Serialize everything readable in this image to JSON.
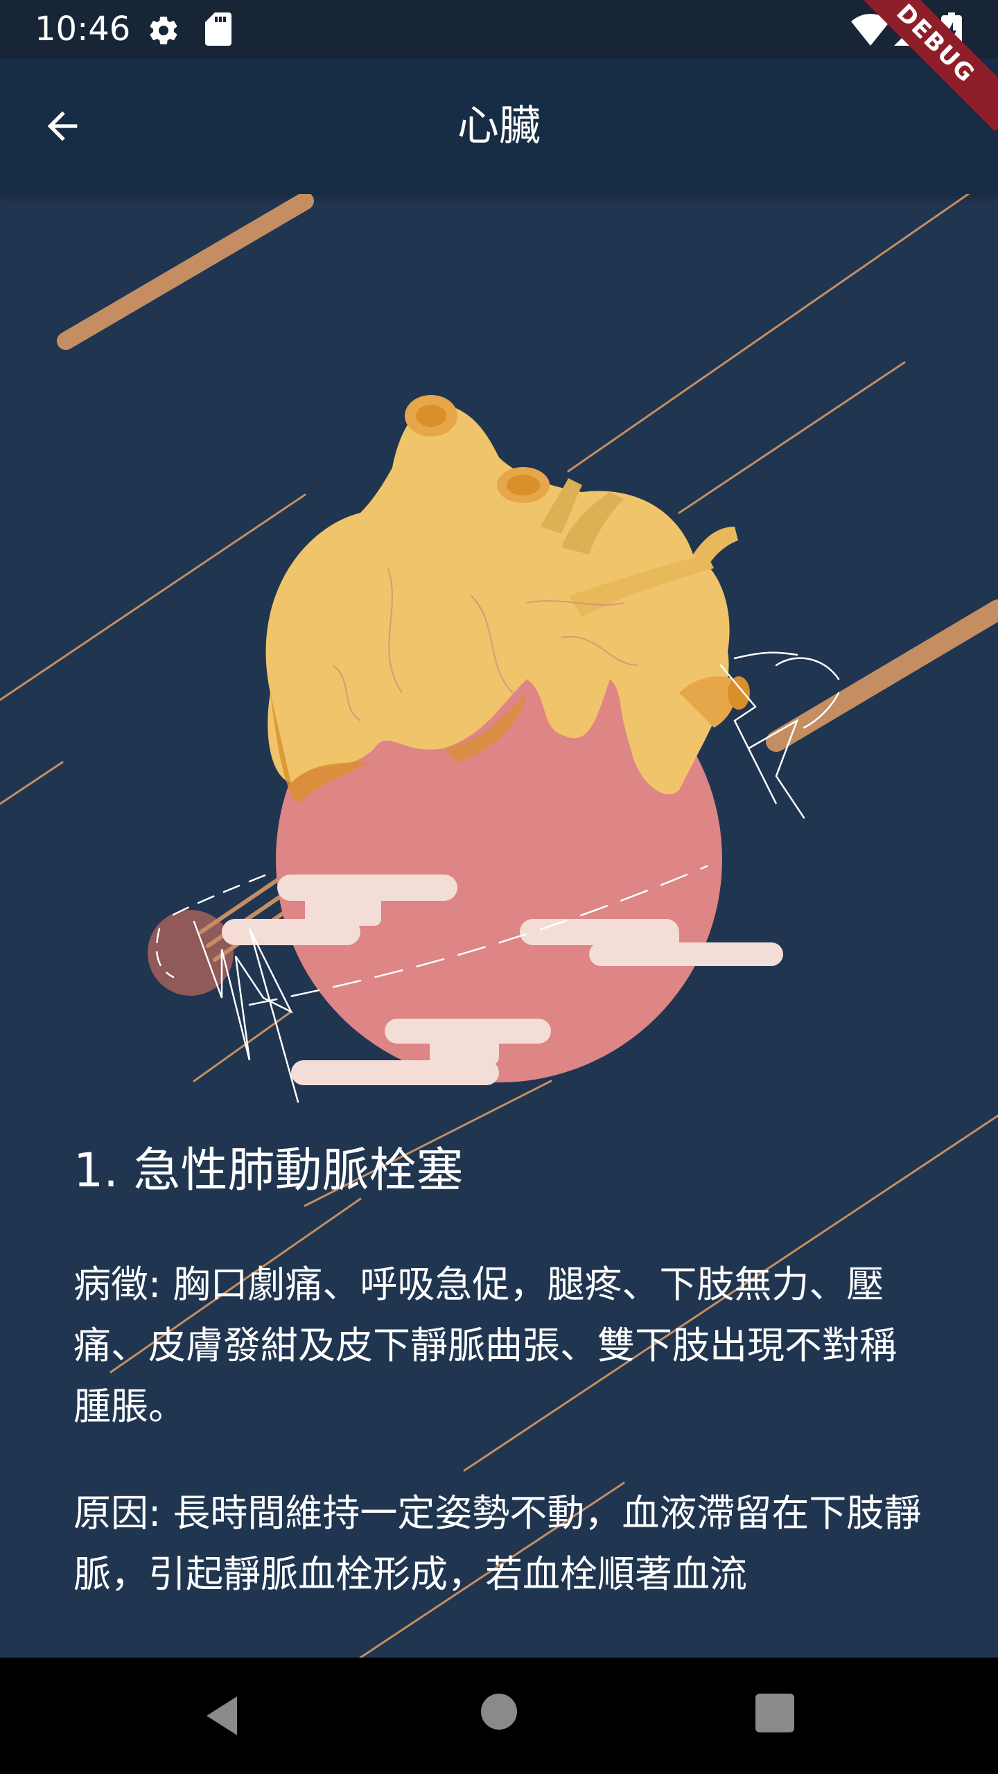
{
  "status_bar": {
    "time": "10:46",
    "icons": [
      "gear-icon",
      "sd-card-icon",
      "wifi-icon",
      "signal-icon",
      "battery-charging-icon"
    ]
  },
  "debug_banner": "DEBUG",
  "app_bar": {
    "title": "心臟",
    "back_icon": "arrow-back-icon"
  },
  "illustration": {
    "subject": "heart-illustration",
    "colors": {
      "background": "#203550",
      "heart_yellow": "#f0c46a",
      "heart_orange": "#d9902a",
      "heart_pink": "#de8585",
      "cloud": "#f3ddd6",
      "lines": "#c58e62"
    }
  },
  "article": {
    "heading": "1. 急性肺動脈栓塞",
    "symptoms": "病徵: 胸口劇痛、呼吸急促，腿疼、下肢無力、壓痛、皮膚發紺及皮下靜脈曲張、雙下肢出現不對稱腫脹。",
    "causes": "原因: 長時間維持一定姿勢不動，血液滯留在下肢靜脈，引起靜脈血栓形成，若血栓順著血流"
  },
  "nav_bar": {
    "icons": [
      "nav-back-icon",
      "nav-home-icon",
      "nav-recents-icon"
    ]
  },
  "theme": {
    "status_bar": "#172537",
    "app_bar": "#172d45",
    "page": "#203550",
    "nav_bar": "#000000"
  }
}
